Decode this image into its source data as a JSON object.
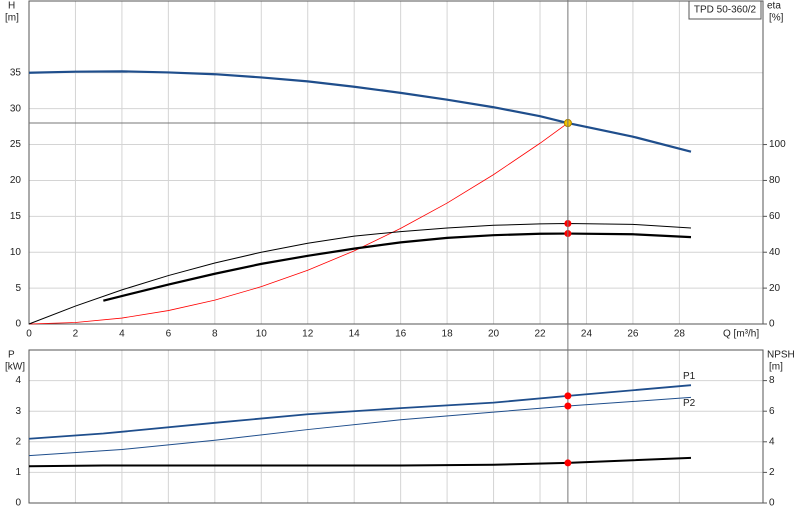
{
  "chart_data": [
    {
      "type": "line",
      "title": "TPD 50-360/2",
      "x_label": "Q [m³/h]",
      "y_label": "H",
      "y_unit": "[m]",
      "y2_label": "eta",
      "y2_unit": "[%]",
      "xlim": [
        0,
        31.6
      ],
      "xticks": [
        0,
        2,
        4,
        6,
        8,
        10,
        12,
        14,
        16,
        18,
        20,
        22,
        24,
        26,
        28
      ],
      "ylim": [
        0,
        45
      ],
      "yticks": [
        0,
        5,
        10,
        15,
        20,
        25,
        30,
        35
      ],
      "y2lim": [
        0,
        180
      ],
      "y2ticks": [
        0,
        20,
        40,
        60,
        80,
        100
      ],
      "grid": true,
      "operating_point": {
        "x": 23.2,
        "y": 28
      },
      "series": [
        {
          "color": "#1f4e8c",
          "line_width": 2.2,
          "x": [
            0,
            2,
            4,
            6,
            8,
            10,
            12,
            14,
            16,
            18,
            20,
            22,
            23.2,
            26,
            28.5
          ],
          "values": [
            35,
            35.15,
            35.2,
            35.05,
            34.8,
            34.35,
            33.8,
            33.05,
            32.2,
            31.25,
            30.2,
            28.95,
            28,
            26.1,
            24
          ]
        },
        {
          "color": "#ff0000",
          "line_width": 0.8,
          "x": [
            0,
            2,
            4,
            6,
            8,
            10,
            12,
            14,
            16,
            18,
            20,
            22,
            23.2
          ],
          "values": [
            0,
            0.21,
            0.83,
            1.87,
            3.33,
            5.2,
            7.49,
            10.19,
            13.32,
            16.85,
            20.81,
            25.18,
            28
          ]
        },
        {
          "color": "#000000",
          "line_width": 1,
          "axis": "y2",
          "x": [
            0,
            2,
            4,
            6,
            8,
            10,
            12,
            14,
            16,
            18,
            20,
            22,
            23.2,
            26,
            28.5
          ],
          "values": [
            0,
            10,
            19,
            27,
            34,
            40,
            45,
            49,
            51.5,
            53.5,
            55,
            55.8,
            56,
            55.5,
            53.5
          ]
        },
        {
          "color": "#000000",
          "line_width": 2.2,
          "axis": "y2",
          "x": [
            3.2,
            6,
            8,
            10,
            12,
            14,
            16,
            18,
            20,
            22,
            23.2,
            26,
            28.5
          ],
          "values": [
            13,
            22,
            28,
            33.5,
            38,
            42,
            45.5,
            48,
            49.5,
            50.3,
            50.4,
            50,
            48.4
          ]
        }
      ]
    },
    {
      "type": "line",
      "y_label": "P",
      "y_unit": "[kW]",
      "y2_label": "NPSH",
      "y2_unit": "[m]",
      "ylim": [
        0,
        5
      ],
      "yticks": [
        0,
        1,
        2,
        3,
        4
      ],
      "y2lim": [
        0,
        10
      ],
      "y2ticks": [
        0,
        2,
        4,
        6,
        8
      ],
      "grid": true,
      "series": [
        {
          "name": "P1",
          "color": "#1f4e8c",
          "line_width": 1.8,
          "x": [
            0,
            3.2,
            8,
            12,
            16,
            20,
            23.2,
            28.5
          ],
          "values": [
            2.1,
            2.27,
            2.62,
            2.9,
            3.1,
            3.28,
            3.5,
            3.85
          ]
        },
        {
          "name": "P2",
          "color": "#1f4e8c",
          "line_width": 1,
          "x": [
            0,
            4,
            8,
            12,
            16,
            20,
            23.2,
            28.5
          ],
          "values": [
            1.55,
            1.75,
            2.05,
            2.4,
            2.72,
            2.97,
            3.17,
            3.45
          ]
        },
        {
          "color": "#000000",
          "line_width": 2,
          "axis": "y2",
          "x": [
            0,
            3.2,
            8,
            16,
            20,
            23.2,
            28.5
          ],
          "values": [
            2.4,
            2.45,
            2.45,
            2.45,
            2.5,
            2.62,
            2.95
          ]
        }
      ]
    }
  ]
}
